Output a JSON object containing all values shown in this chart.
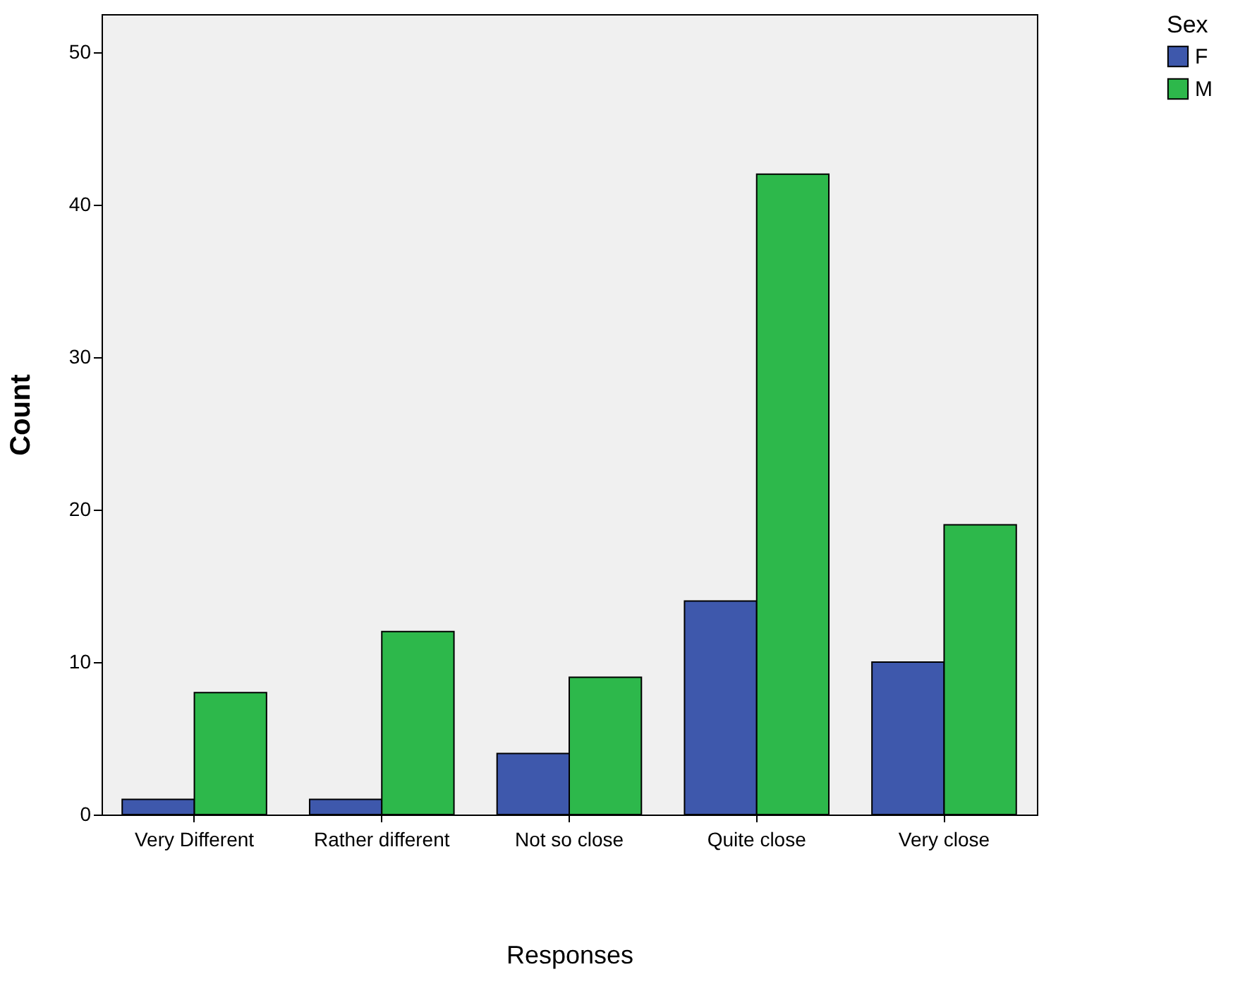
{
  "chart_data": {
    "type": "bar",
    "xlabel": "Responses",
    "ylabel": "Count",
    "legend_title": "Sex",
    "categories": [
      "Very Different",
      "Rather different",
      "Not so close",
      "Quite close",
      "Very close"
    ],
    "series": [
      {
        "name": "F",
        "color": "#3e58ac",
        "values": [
          1,
          1,
          4,
          14,
          10
        ]
      },
      {
        "name": "M",
        "color": "#2db84b",
        "values": [
          8,
          12,
          9,
          42,
          19
        ]
      }
    ],
    "ylim": [
      0,
      52.5
    ],
    "yticks": [
      0,
      10,
      20,
      30,
      40,
      50
    ],
    "legend": "top right"
  }
}
